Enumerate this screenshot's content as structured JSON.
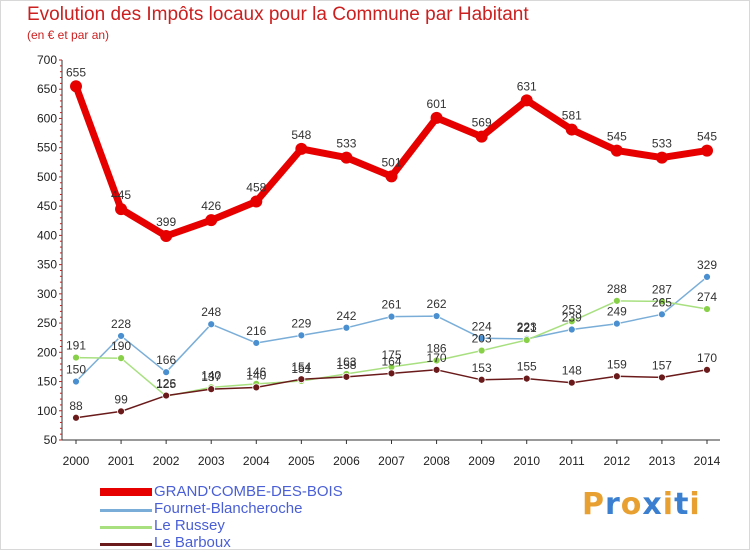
{
  "header": {
    "title": "Evolution des Impôts locaux pour la Commune par Habitant",
    "subtitle": "(en € et par an)"
  },
  "brand": {
    "text": "Proxiti",
    "letters": [
      "P",
      "r",
      "o",
      "x",
      "i",
      "t",
      "i"
    ],
    "letter_colors": [
      "#e8a030",
      "#3b7fd0",
      "#e8a030",
      "#3b7fd0",
      "#e8a030",
      "#3b7fd0",
      "#e8a030"
    ]
  },
  "chart_data": {
    "type": "line",
    "title": "Evolution des Impôts locaux pour la Commune par Habitant",
    "subtitle": "(en € et par an)",
    "x": [
      "2000",
      "2001",
      "2002",
      "2003",
      "2004",
      "2005",
      "2006",
      "2007",
      "2008",
      "2009",
      "2010",
      "2011",
      "2012",
      "2013",
      "2014"
    ],
    "ylim": [
      50,
      700
    ],
    "yticks": [
      50,
      100,
      150,
      200,
      250,
      300,
      350,
      400,
      450,
      500,
      550,
      600,
      650,
      700
    ],
    "grid": false,
    "legend_position": "bottom-left",
    "series": [
      {
        "name": "GRAND'COMBE-DES-BOIS",
        "values": [
          655,
          445,
          399,
          426,
          458,
          548,
          533,
          501,
          601,
          569,
          631,
          581,
          545,
          533,
          545
        ],
        "color": "#e60000",
        "line_color": "#e60000"
      },
      {
        "name": "Fournet-Blancheroche",
        "values": [
          150,
          228,
          166,
          248,
          216,
          229,
          242,
          261,
          262,
          224,
          223,
          239,
          249,
          265,
          329
        ],
        "color": "#4a8fd0",
        "line_color": "#7aaed8"
      },
      {
        "name": "Le Russey",
        "values": [
          191,
          190,
          125,
          140,
          146,
          151,
          163,
          175,
          186,
          203,
          221,
          253,
          288,
          287,
          274
        ],
        "color": "#88d048",
        "line_color": "#a8e080"
      },
      {
        "name": "Le Barboux",
        "values": [
          88,
          99,
          126,
          137,
          140,
          154,
          158,
          164,
          170,
          153,
          155,
          148,
          159,
          157,
          170
        ],
        "color": "#6a1a1a",
        "line_color": "#6a1a1a"
      }
    ]
  }
}
